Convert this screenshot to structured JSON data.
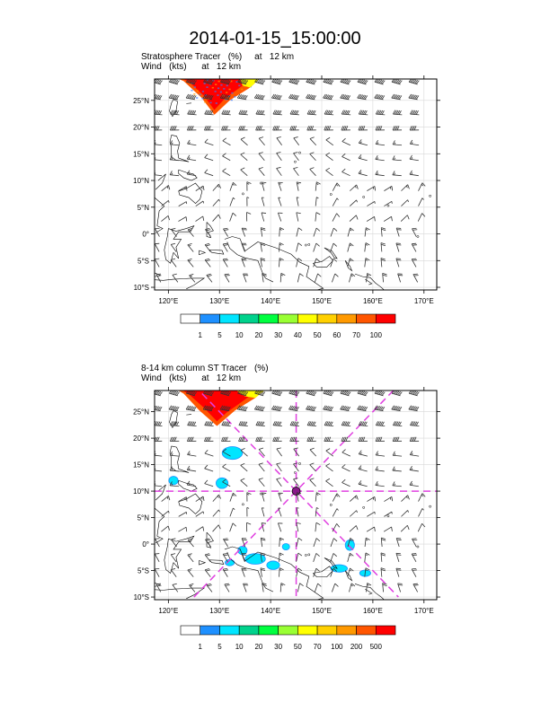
{
  "title": "2014-01-15_15:00:00",
  "colors": {
    "frame": "#000000",
    "grid": "#d8d8d8",
    "coast": "#000000",
    "wind": "#333333",
    "crosshair": "#e040e0",
    "center_marker": "#8a1a8a"
  },
  "panels": [
    {
      "line1": "Stratosphere Tracer   (%)     at   12 km",
      "line2": "Wind   (kts)      at   12 km",
      "colorbar_labels": [
        "1",
        "5",
        "10",
        "20",
        "30",
        "40",
        "50",
        "60",
        "70",
        "100"
      ],
      "colorbar_colors": [
        "#ffffff",
        "#1e90ff",
        "#00e5ff",
        "#00d28c",
        "#00ff40",
        "#99ff33",
        "#ffff00",
        "#ffd000",
        "#ff9900",
        "#ff5500",
        "#ff0000"
      ],
      "lon_ticks": [
        "120°E",
        "130°E",
        "140°E",
        "150°E",
        "160°E",
        "170°E"
      ],
      "lat_ticks": [
        "25°N",
        "20°N",
        "15°N",
        "10°N",
        "5°N",
        "0°",
        "5°S",
        "10°S"
      ],
      "tracer_features": [
        {
          "label": "stratosphere tracer intrusion",
          "region": "NW corner above ~22°N, 122–138°E",
          "value": "70-100%"
        }
      ]
    },
    {
      "line1": "8-14 km column ST Tracer   (%)",
      "line2": "Wind   (kts)      at   12 km",
      "colorbar_labels": [
        "1",
        "5",
        "10",
        "20",
        "30",
        "50",
        "70",
        "100",
        "200",
        "500"
      ],
      "colorbar_colors": [
        "#ffffff",
        "#1e90ff",
        "#00e5ff",
        "#00d28c",
        "#00ff40",
        "#99ff33",
        "#ffff00",
        "#ffd000",
        "#ff9900",
        "#ff5500",
        "#ff0000"
      ],
      "lon_ticks": [
        "120°E",
        "130°E",
        "140°E",
        "150°E",
        "160°E",
        "170°E"
      ],
      "lat_ticks": [
        "25°N",
        "20°N",
        "15°N",
        "10°N",
        "5°N",
        "0°",
        "5°S",
        "10°S"
      ],
      "storm_center": {
        "lon": 145.0,
        "lat": 10.0
      },
      "tracer_features": [
        {
          "label": "column tracer intrusion",
          "region": "NW corner above ~22°N, 122–138°E",
          "value": ">100%"
        },
        {
          "label": "scattered low values",
          "region": "Equatorial blobs 128–160°E",
          "value": "5-20%"
        }
      ]
    }
  ]
}
